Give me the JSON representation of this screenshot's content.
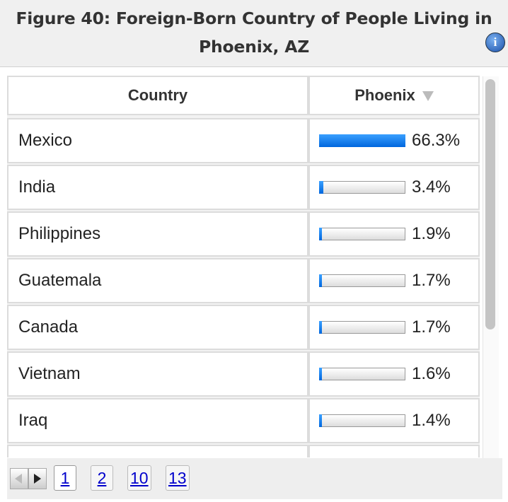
{
  "header": {
    "title": "Figure 40: Foreign-Born Country of People Living in Phoenix, AZ"
  },
  "table": {
    "columns": [
      "Country",
      "Phoenix"
    ],
    "rows": [
      {
        "country": "Mexico",
        "value": 66.3,
        "label": "66.3%"
      },
      {
        "country": "India",
        "value": 3.4,
        "label": "3.4%"
      },
      {
        "country": "Philippines",
        "value": 1.9,
        "label": "1.9%"
      },
      {
        "country": "Guatemala",
        "value": 1.7,
        "label": "1.7%"
      },
      {
        "country": "Canada",
        "value": 1.7,
        "label": "1.7%"
      },
      {
        "country": "Vietnam",
        "value": 1.6,
        "label": "1.6%"
      },
      {
        "country": "Iraq",
        "value": 1.4,
        "label": "1.4%"
      }
    ]
  },
  "pagination": {
    "pages": [
      "1",
      "2",
      "10",
      "13"
    ]
  }
}
